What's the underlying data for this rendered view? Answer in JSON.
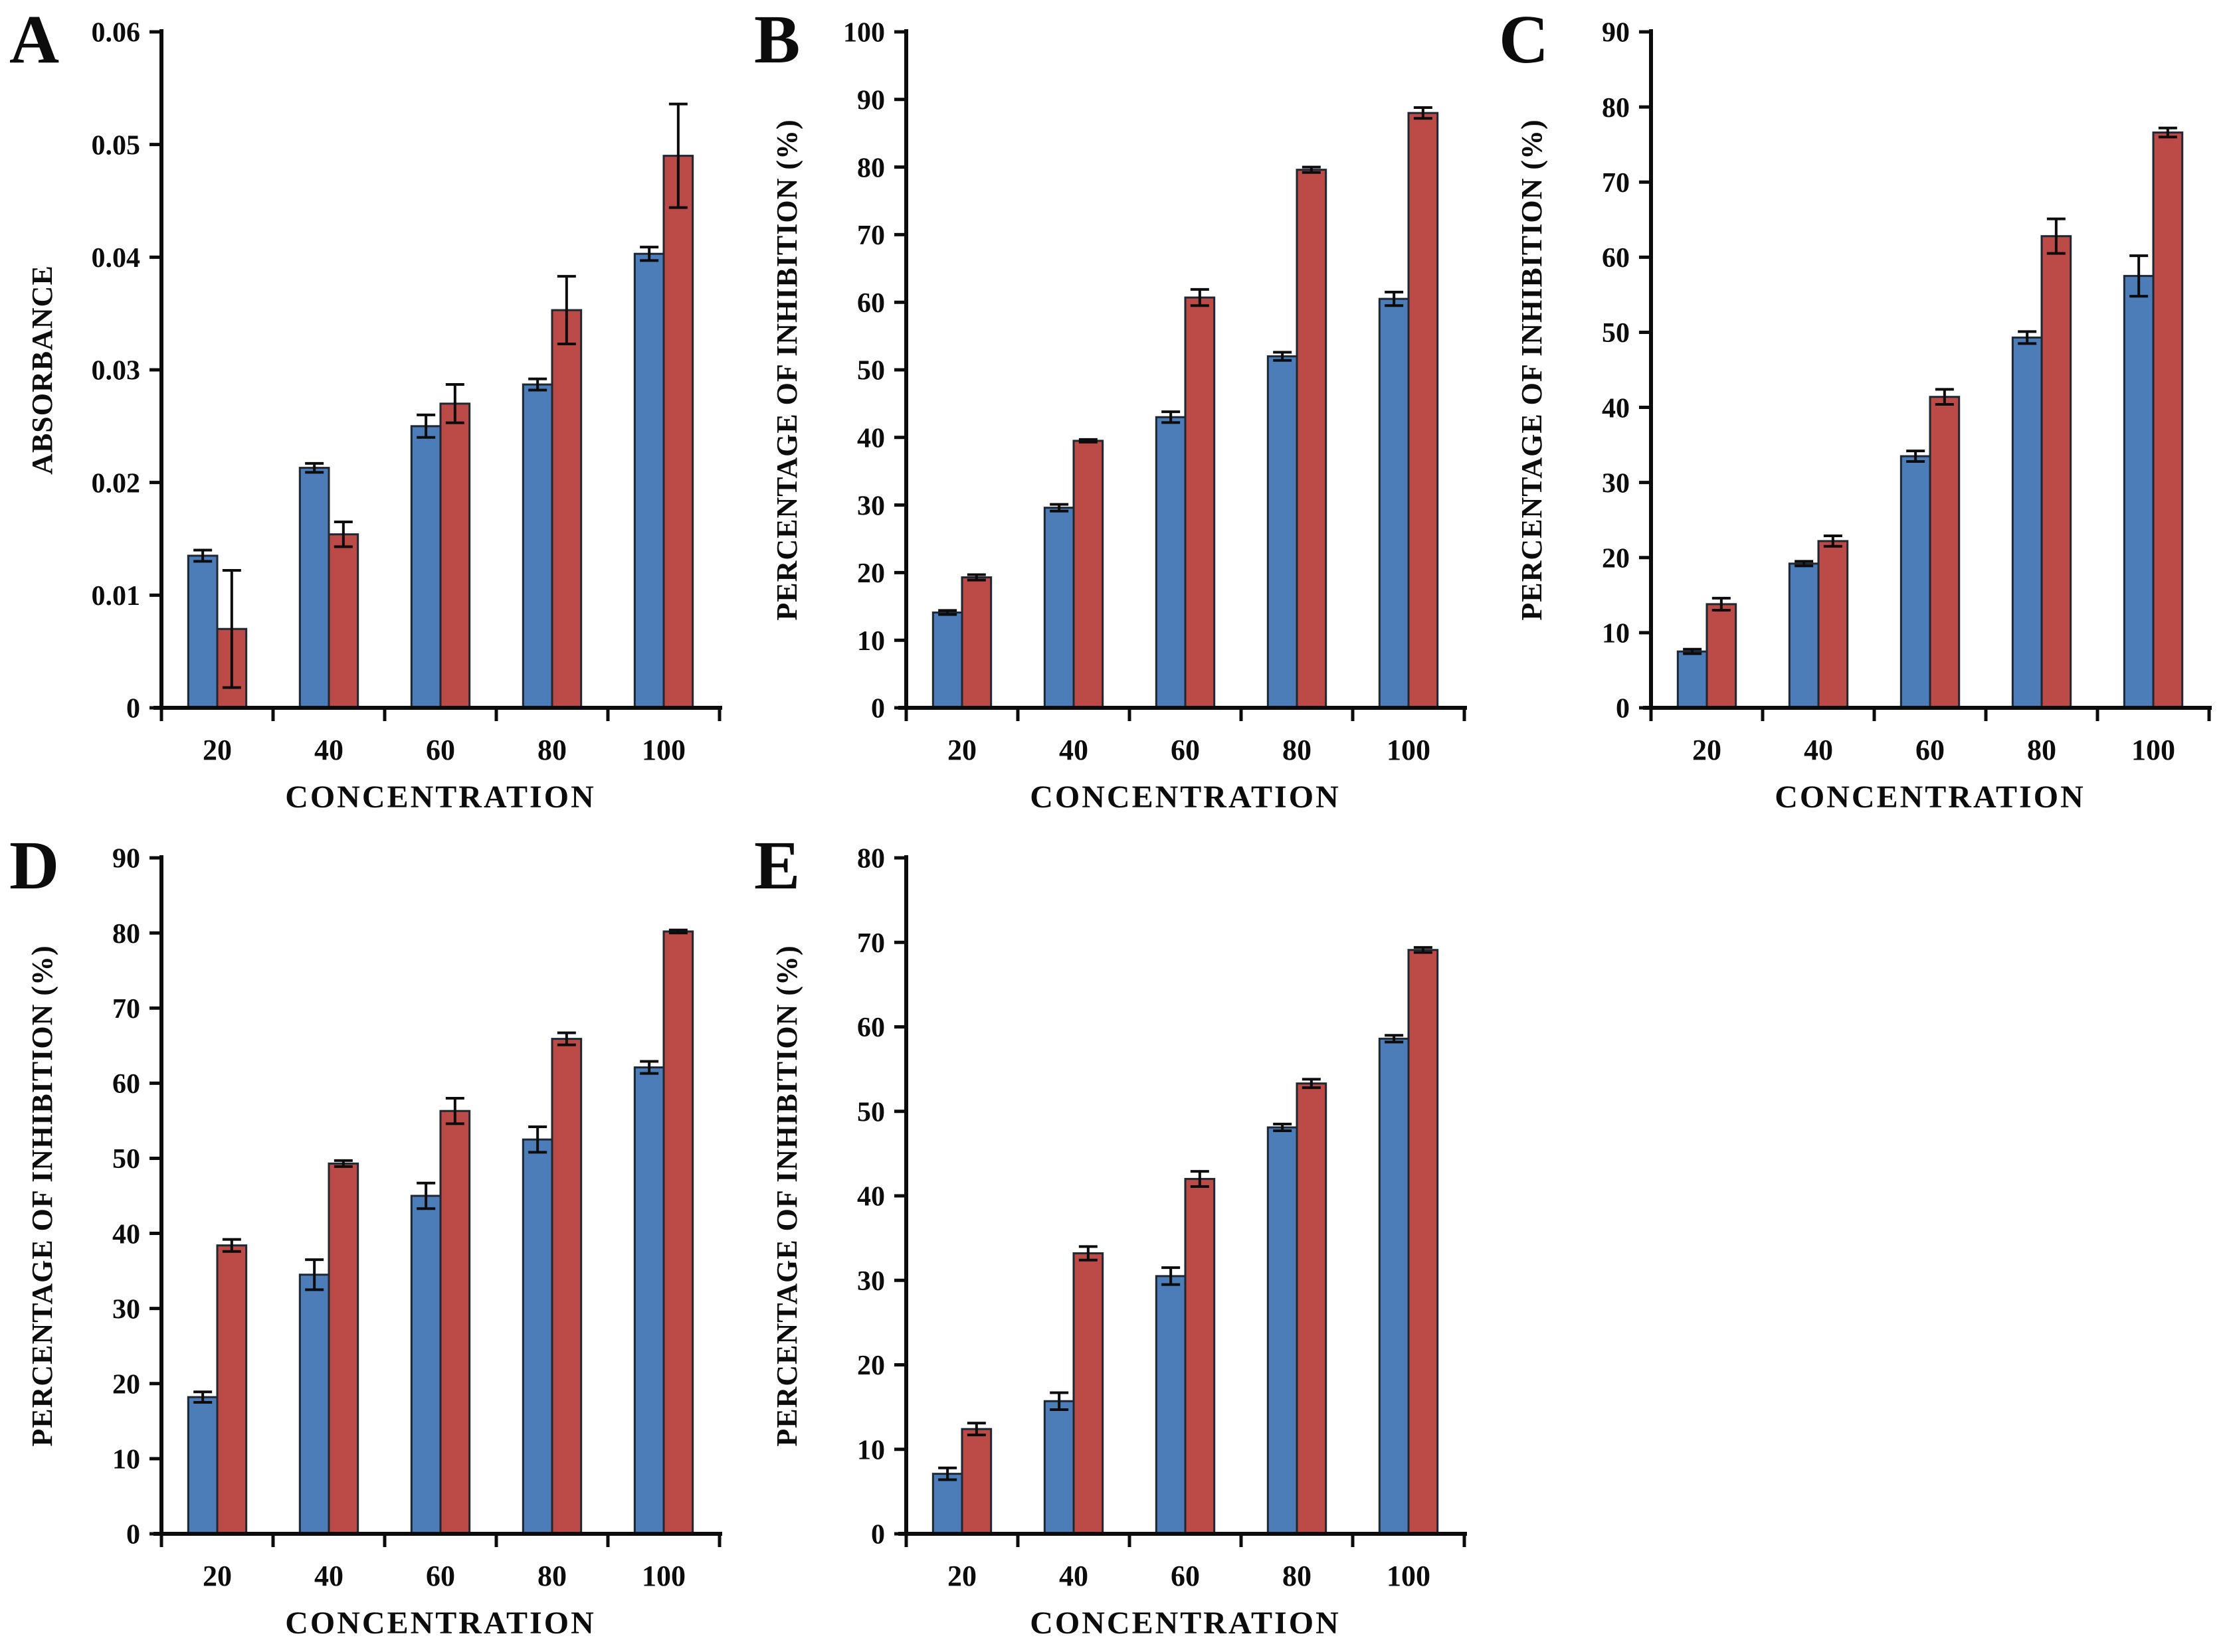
{
  "colors": {
    "series_blue_fill": "#4C7DB8",
    "series_red_fill": "#BC4B48",
    "bar_border": "#1F2733",
    "axis": "#0c0c0c",
    "error_bar": "#0c0c0c",
    "background": "#ffffff",
    "text": "#0c0c0c"
  },
  "chart_data": [
    {
      "panel_label": "A",
      "type": "bar",
      "categories": [
        "20",
        "40",
        "60",
        "80",
        "100"
      ],
      "xlabel": "CONCENTRATION",
      "ylabel": "ABSORBANCE",
      "ylim": [
        0,
        0.06
      ],
      "ytick_step": 0.01,
      "grid": false,
      "legend": "none",
      "series": [
        {
          "name": "blue",
          "color_key": "series_blue_fill",
          "values": [
            0.0135,
            0.0213,
            0.025,
            0.0287,
            0.0403
          ],
          "errors": [
            0.0005,
            0.0004,
            0.001,
            0.0005,
            0.0006
          ]
        },
        {
          "name": "red",
          "color_key": "series_red_fill",
          "values": [
            0.007,
            0.0154,
            0.027,
            0.0353,
            0.049
          ],
          "errors": [
            0.0052,
            0.0011,
            0.0017,
            0.003,
            0.0046
          ]
        }
      ]
    },
    {
      "panel_label": "B",
      "type": "bar",
      "categories": [
        "20",
        "40",
        "60",
        "80",
        "100"
      ],
      "xlabel": "CONCENTRATION",
      "ylabel": "PERCENTAGE OF INHIBITION (%)",
      "ylim": [
        0,
        100
      ],
      "ytick_step": 10,
      "grid": false,
      "legend": "none",
      "series": [
        {
          "name": "blue",
          "color_key": "series_blue_fill",
          "values": [
            14.1,
            29.6,
            43.0,
            52.0,
            60.5
          ],
          "errors": [
            0.3,
            0.5,
            0.8,
            0.6,
            1.0
          ]
        },
        {
          "name": "red",
          "color_key": "series_red_fill",
          "values": [
            19.3,
            39.5,
            60.7,
            79.6,
            88.0
          ],
          "errors": [
            0.4,
            0.2,
            1.2,
            0.4,
            0.8
          ]
        }
      ]
    },
    {
      "panel_label": "C",
      "type": "bar",
      "categories": [
        "20",
        "40",
        "60",
        "80",
        "100"
      ],
      "xlabel": "CONCENTRATION",
      "ylabel": "PERCENTAGE OF INHIBITION (%)",
      "ylim": [
        0,
        90
      ],
      "ytick_step": 10,
      "grid": false,
      "legend": "none",
      "series": [
        {
          "name": "blue",
          "color_key": "series_blue_fill",
          "values": [
            7.5,
            19.2,
            33.5,
            49.3,
            57.5
          ],
          "errors": [
            0.3,
            0.3,
            0.7,
            0.8,
            2.7
          ]
        },
        {
          "name": "red",
          "color_key": "series_red_fill",
          "values": [
            13.8,
            22.2,
            41.4,
            62.8,
            76.6
          ],
          "errors": [
            0.8,
            0.7,
            1.0,
            2.3,
            0.6
          ]
        }
      ]
    },
    {
      "panel_label": "D",
      "type": "bar",
      "categories": [
        "20",
        "40",
        "60",
        "80",
        "100"
      ],
      "xlabel": "CONCENTRATION",
      "ylabel": "PERCENTAGE OF INHIBITION (%)",
      "ylim": [
        0,
        90
      ],
      "ytick_step": 10,
      "grid": false,
      "legend": "none",
      "series": [
        {
          "name": "blue",
          "color_key": "series_blue_fill",
          "values": [
            18.2,
            34.5,
            45.0,
            52.5,
            62.1
          ],
          "errors": [
            0.7,
            2.0,
            1.7,
            1.7,
            0.8
          ]
        },
        {
          "name": "red",
          "color_key": "series_red_fill",
          "values": [
            38.4,
            49.3,
            56.3,
            65.9,
            80.2
          ],
          "errors": [
            0.8,
            0.4,
            1.7,
            0.8,
            0.2
          ]
        }
      ]
    },
    {
      "panel_label": "E",
      "type": "bar",
      "categories": [
        "20",
        "40",
        "60",
        "80",
        "100"
      ],
      "xlabel": "CONCENTRATION",
      "ylabel": "PERCENTAGE OF INHIBITION (%)",
      "ylim": [
        0,
        80
      ],
      "ytick_step": 10,
      "grid": false,
      "legend": "none",
      "series": [
        {
          "name": "blue",
          "color_key": "series_blue_fill",
          "values": [
            7.1,
            15.7,
            30.5,
            48.1,
            58.6
          ],
          "errors": [
            0.7,
            1.0,
            1.0,
            0.4,
            0.4
          ]
        },
        {
          "name": "red",
          "color_key": "series_red_fill",
          "values": [
            12.4,
            33.2,
            42.0,
            53.3,
            69.1
          ],
          "errors": [
            0.7,
            0.8,
            0.9,
            0.5,
            0.3
          ]
        }
      ]
    }
  ]
}
